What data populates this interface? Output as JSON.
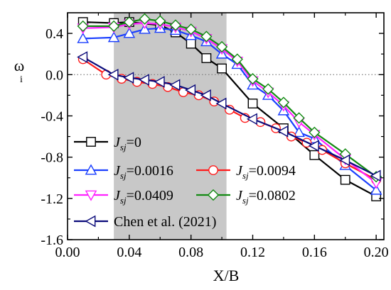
{
  "chart_data": {
    "type": "line",
    "xlabel": "X/B",
    "ylabel": "ω",
    "ylabel_sub": "i",
    "xlim": [
      0.0,
      0.205
    ],
    "ylim": [
      -1.6,
      0.6
    ],
    "xticks": [
      "0.00",
      "0.04",
      "0.08",
      "0.12",
      "0.16",
      "0.20"
    ],
    "xtick_values": [
      0.0,
      0.04,
      0.08,
      0.12,
      0.16,
      0.2
    ],
    "yticks": [
      "0.4",
      "0.0",
      "-0.4",
      "-0.8",
      "-1.2",
      "-1.6"
    ],
    "ytick_values": [
      0.4,
      0.0,
      -0.4,
      -0.8,
      -1.2,
      -1.6
    ],
    "shaded_region": {
      "x": [
        0.03,
        0.103
      ],
      "color": "#c8c8c8"
    },
    "zero_line": {
      "y": 0.0,
      "style": "dotted"
    },
    "legend_placement": "bottom-left",
    "series": [
      {
        "name": "Jsj=0",
        "label_prefix": "J",
        "label_sub": "sj",
        "label_suffix": "=0",
        "color": "#000000",
        "marker": "square",
        "x": [
          0.01,
          0.03,
          0.04,
          0.06,
          0.07,
          0.08,
          0.09,
          0.1,
          0.12,
          0.14,
          0.16,
          0.18,
          0.2
        ],
        "y": [
          0.51,
          0.5,
          0.51,
          0.48,
          0.41,
          0.3,
          0.16,
          0.06,
          -0.28,
          -0.52,
          -0.78,
          -1.02,
          -1.18
        ]
      },
      {
        "name": "Jsj=0.0016",
        "label_prefix": "J",
        "label_sub": "sj",
        "label_suffix": "=0.0016",
        "color": "#1a3fff",
        "marker": "triangle-up",
        "x": [
          0.01,
          0.03,
          0.04,
          0.05,
          0.06,
          0.07,
          0.08,
          0.09,
          0.1,
          0.11,
          0.12,
          0.13,
          0.14,
          0.15,
          0.16,
          0.18,
          0.2
        ],
        "y": [
          0.35,
          0.36,
          0.4,
          0.44,
          0.45,
          0.43,
          0.38,
          0.32,
          0.2,
          0.1,
          -0.1,
          -0.2,
          -0.35,
          -0.56,
          -0.62,
          -0.88,
          -1.12
        ]
      },
      {
        "name": "Jsj=0.0094",
        "label_prefix": "J",
        "label_sub": "sj",
        "label_suffix": "=0.0094",
        "color": "#ff1a1a",
        "marker": "circle",
        "x": [
          0.01,
          0.025,
          0.035,
          0.045,
          0.055,
          0.065,
          0.075,
          0.085,
          0.095,
          0.105,
          0.115,
          0.125,
          0.135,
          0.145,
          0.155,
          0.165,
          0.18,
          0.2
        ],
        "y": [
          0.15,
          0.0,
          -0.04,
          -0.07,
          -0.09,
          -0.12,
          -0.17,
          -0.2,
          -0.26,
          -0.34,
          -0.42,
          -0.46,
          -0.52,
          -0.6,
          -0.66,
          -0.73,
          -0.86,
          -1.02
        ]
      },
      {
        "name": "Jsj=0.0409",
        "label_prefix": "J",
        "label_sub": "sj",
        "label_suffix": "=0.0409",
        "color": "#ff22ff",
        "marker": "triangle-down",
        "x": [
          0.01,
          0.03,
          0.04,
          0.05,
          0.06,
          0.07,
          0.08,
          0.09,
          0.1,
          0.11,
          0.12,
          0.13,
          0.14,
          0.15,
          0.16,
          0.18,
          0.2
        ],
        "y": [
          0.45,
          0.46,
          0.49,
          0.5,
          0.49,
          0.46,
          0.42,
          0.35,
          0.25,
          0.13,
          -0.06,
          -0.17,
          -0.3,
          -0.46,
          -0.58,
          -0.82,
          -1.05
        ]
      },
      {
        "name": "Jsj=0.0802",
        "label_prefix": "J",
        "label_sub": "sj",
        "label_suffix": "=0.0802",
        "color": "#138a13",
        "marker": "diamond",
        "x": [
          0.01,
          0.03,
          0.04,
          0.05,
          0.06,
          0.07,
          0.08,
          0.09,
          0.1,
          0.11,
          0.12,
          0.13,
          0.14,
          0.15,
          0.16,
          0.18,
          0.2
        ],
        "y": [
          0.47,
          0.47,
          0.51,
          0.54,
          0.52,
          0.48,
          0.44,
          0.37,
          0.27,
          0.15,
          -0.04,
          -0.14,
          -0.27,
          -0.42,
          -0.56,
          -0.77,
          -0.99
        ]
      },
      {
        "name": "Chen et al. (2021)",
        "label_prefix": "Chen et al. (2021)",
        "label_sub": "",
        "label_suffix": "",
        "color": "#0a0a7a",
        "marker": "triangle-left",
        "x": [
          0.01,
          0.03,
          0.04,
          0.05,
          0.06,
          0.07,
          0.08,
          0.09,
          0.1,
          0.12,
          0.14,
          0.16,
          0.18,
          0.2
        ],
        "y": [
          0.17,
          0.0,
          -0.03,
          -0.05,
          -0.07,
          -0.1,
          -0.15,
          -0.2,
          -0.28,
          -0.43,
          -0.55,
          -0.69,
          -0.83,
          -0.98
        ]
      }
    ]
  }
}
